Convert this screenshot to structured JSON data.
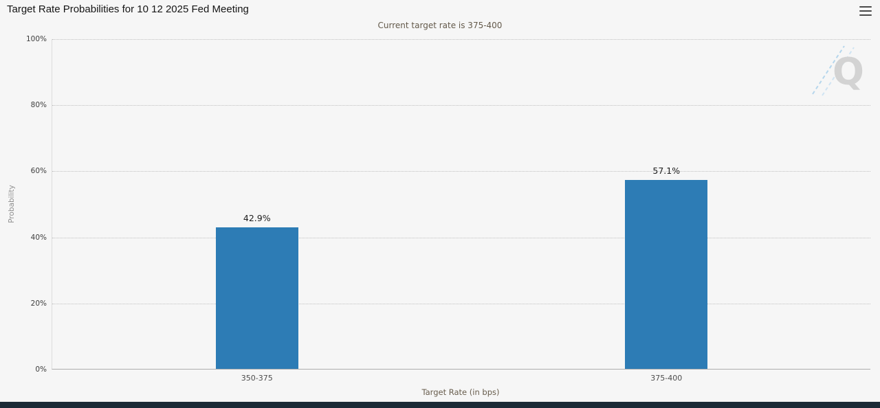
{
  "header": {
    "title": "Target Rate Probabilities for 10 12 2025 Fed Meeting",
    "subtitle": "Current target rate is 375-400",
    "menu_icon": "hamburger-icon"
  },
  "chart_data": {
    "type": "bar",
    "title": "Target Rate Probabilities for 10 12 2025 Fed Meeting",
    "subtitle": "Current target rate is 375-400",
    "categories": [
      "350-375",
      "375-400"
    ],
    "values": [
      42.9,
      57.1
    ],
    "value_labels": [
      "42.9%",
      "57.1%"
    ],
    "xlabel": "Target Rate (in bps)",
    "ylabel": "Probability",
    "ylim": [
      0,
      100
    ],
    "yticks": [
      {
        "value": 0,
        "label": "0%"
      },
      {
        "value": 20,
        "label": "20%"
      },
      {
        "value": 40,
        "label": "40%"
      },
      {
        "value": 60,
        "label": "60%"
      },
      {
        "value": 80,
        "label": "80%"
      },
      {
        "value": 100,
        "label": "100%"
      }
    ],
    "grid": "dotted-horizontal",
    "legend": "none",
    "bar_color": "#2d7cb5",
    "watermark_letter": "Q"
  },
  "colors": {
    "background": "#f6f6f6",
    "bar": "#2d7cb5",
    "footer_bar": "#1c2a36",
    "subtitle_text": "#63594a",
    "watermark_gray": "#d3d3d3",
    "watermark_blue": "#b5d6ec"
  }
}
